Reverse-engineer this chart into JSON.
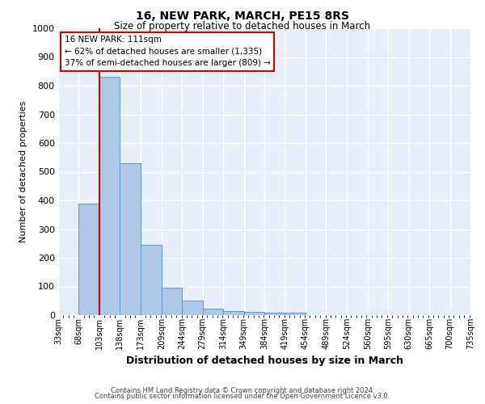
{
  "title": "16, NEW PARK, MARCH, PE15 8RS",
  "subtitle": "Size of property relative to detached houses in March",
  "xlabel": "Distribution of detached houses by size in March",
  "ylabel": "Number of detached properties",
  "bin_edges": [
    33,
    68,
    103,
    138,
    173,
    209,
    244,
    279,
    314,
    349,
    384,
    419,
    454,
    489,
    524,
    560,
    595,
    630,
    665,
    700,
    735
  ],
  "bar_values": [
    0,
    390,
    830,
    530,
    245,
    95,
    50,
    22,
    15,
    10,
    8,
    8,
    0,
    0,
    0,
    0,
    0,
    0,
    0,
    0
  ],
  "bar_color": "#aec6e8",
  "bar_edge_color": "#5b9bd5",
  "vline_x": 103,
  "vline_color": "#cc0000",
  "ylim": [
    0,
    1000
  ],
  "yticks": [
    0,
    100,
    200,
    300,
    400,
    500,
    600,
    700,
    800,
    900,
    1000
  ],
  "annotation_title": "16 NEW PARK: 111sqm",
  "annotation_line1": "← 62% of detached houses are smaller (1,335)",
  "annotation_line2": "37% of semi-detached houses are larger (809) →",
  "annotation_box_color": "#ffffff",
  "annotation_box_edge": "#cc0000",
  "footer1": "Contains HM Land Registry data © Crown copyright and database right 2024.",
  "footer2": "Contains public sector information licensed under the Open Government Licence v3.0.",
  "tick_labels": [
    "33sqm",
    "68sqm",
    "103sqm",
    "138sqm",
    "173sqm",
    "209sqm",
    "244sqm",
    "279sqm",
    "314sqm",
    "349sqm",
    "384sqm",
    "419sqm",
    "454sqm",
    "489sqm",
    "524sqm",
    "560sqm",
    "595sqm",
    "630sqm",
    "665sqm",
    "700sqm",
    "735sqm"
  ]
}
